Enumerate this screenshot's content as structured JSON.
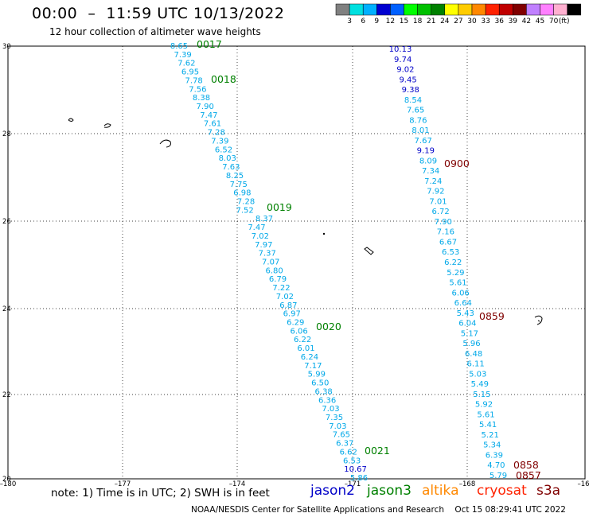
{
  "header": {
    "title": "00:00  –  11:59 UTC 10/13/2022",
    "subtitle": "12 hour collection of altimeter wave heights"
  },
  "colorbar": {
    "colors": [
      "#808080",
      "#00e0e0",
      "#00b0ff",
      "#0000d0",
      "#0060ff",
      "#00ff00",
      "#00c000",
      "#008000",
      "#ffff00",
      "#ffcc00",
      "#ff8800",
      "#ff2200",
      "#c00000",
      "#800000",
      "#c080ff",
      "#ff80ff",
      "#ffb0d0",
      "#000000"
    ],
    "labels": [
      "3",
      "6",
      "9",
      "12",
      "15",
      "18",
      "21",
      "24",
      "27",
      "30",
      "33",
      "36",
      "39",
      "42",
      "45",
      "70",
      "(ft)"
    ]
  },
  "map": {
    "lon_ticks": [
      "–180",
      "–177",
      "–174",
      "–171",
      "–168",
      "–16"
    ],
    "lat_ticks": [
      "30",
      "28",
      "26",
      "24",
      "22",
      "20"
    ],
    "track_labels": [
      {
        "text": "0017",
        "color": "#008000"
      },
      {
        "text": "0018",
        "color": "#008000"
      },
      {
        "text": "0019",
        "color": "#008000"
      },
      {
        "text": "0020",
        "color": "#008000"
      },
      {
        "text": "0021",
        "color": "#008000"
      },
      {
        "text": "0900",
        "color": "#800000"
      },
      {
        "text": "0859",
        "color": "#800000"
      },
      {
        "text": "0858",
        "color": "#800000"
      },
      {
        "text": "0857",
        "color": "#800000"
      }
    ],
    "track1_values": [
      "8.65",
      "7.39",
      "7.62",
      "6.95",
      "7.78",
      "7.56",
      "8.38",
      "7.90",
      "7.47",
      "7.61",
      "7.28",
      "7.39",
      "6.52",
      "8.03",
      "7.63",
      "8.25",
      "7.75",
      "6.98",
      "7.28",
      "7.52",
      "8.37",
      "7.47",
      "7.02",
      "7.97",
      "7.37",
      "7.07",
      "6.80",
      "6.79",
      "7.22",
      "7.02",
      "6.87",
      "6.97",
      "6.29",
      "6.06",
      "6.22",
      "6.01",
      "6.24",
      "7.17",
      "5.99",
      "6.50",
      "6.38",
      "6.36",
      "7.03",
      "7.35",
      "7.03",
      "7.65",
      "6.37",
      "6.62",
      "6.53",
      "10.67",
      "5.86"
    ],
    "track2_values": [
      "10.13",
      "9.74",
      "9.02",
      "9.45",
      "9.38",
      "8.54",
      "7.65",
      "8.76",
      "8.01",
      "7.67",
      "9.19",
      "8.09",
      "7.34",
      "7.24",
      "7.92",
      "7.01",
      "6.72",
      "7.90",
      "7.16",
      "6.67",
      "6.53",
      "6.22",
      "5.29",
      "5.61",
      "6.06",
      "6.64",
      "5.43",
      "6.04",
      "5.17",
      "5.96",
      "6.48",
      "6.11",
      "5.03",
      "5.49",
      "5.15",
      "5.92",
      "5.61",
      "5.41",
      "5.21",
      "5.34",
      "6.39",
      "4.70",
      "5.79"
    ]
  },
  "footer": {
    "note": "note:  1) Time is in UTC;  2) SWH is in feet",
    "satellites": [
      {
        "name": "jason2",
        "color": "#0000c8"
      },
      {
        "name": "jason3",
        "color": "#008000"
      },
      {
        "name": "altika",
        "color": "#ff8800"
      },
      {
        "name": "cryosat",
        "color": "#ff2200"
      },
      {
        "name": "s3a",
        "color": "#800000"
      }
    ],
    "credit": "NOAA/NESDIS Center for Satellite Applications and Research    Oct 15 08:29:41 UTC 2022"
  }
}
